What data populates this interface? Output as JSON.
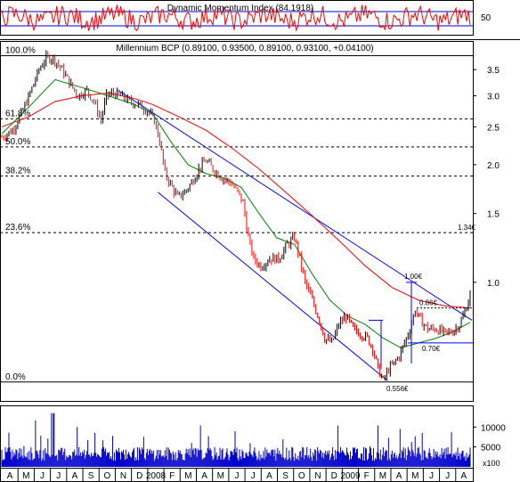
{
  "chart_data": [
    {
      "type": "line",
      "title": "Dynamic Momentum Index (84.1918)",
      "ylim": [
        20,
        80
      ],
      "ticks": [
        "50"
      ],
      "levels": [
        70,
        30
      ],
      "series": [
        {
          "name": "Dynamic Momentum Index",
          "color": "#ff0000"
        }
      ]
    },
    {
      "type": "candlestick",
      "title": "Millennium BCP (0.89100, 0.93500, 0.89100, 0.93100, +0.04100)",
      "scale": "log",
      "ylim": [
        0.5,
        4.1
      ],
      "y_ticks": [
        "3.5",
        "3.0",
        "2.5",
        "2.0",
        "1.5",
        "1.0"
      ],
      "y_tick_values": [
        3.5,
        3.0,
        2.5,
        2.0,
        1.5,
        1.0
      ],
      "fib_levels": [
        {
          "label": "100.0%",
          "value": 3.8
        },
        {
          "label": "61.8%",
          "value": 2.62
        },
        {
          "label": "50.0%",
          "value": 2.22
        },
        {
          "label": "38.2%",
          "value": 1.87
        },
        {
          "label": "23.6%",
          "value": 1.34
        },
        {
          "label": "0.0%",
          "value": 0.556
        }
      ],
      "annotations": [
        {
          "label": "1.34€",
          "value": 1.34
        },
        {
          "label": "1.00€",
          "value": 1.0
        },
        {
          "label": "0.86€",
          "value": 0.86
        },
        {
          "label": "0.70€",
          "value": 0.7
        },
        {
          "label": "0.556€",
          "value": 0.556
        }
      ],
      "price_path": [
        [
          0,
          2.35
        ],
        [
          12,
          2.45
        ],
        [
          22,
          2.7
        ],
        [
          32,
          3.05
        ],
        [
          42,
          3.5
        ],
        [
          50,
          3.75
        ],
        [
          58,
          3.75
        ],
        [
          68,
          3.5
        ],
        [
          76,
          3.25
        ],
        [
          86,
          3.0
        ],
        [
          96,
          3.1
        ],
        [
          104,
          2.9
        ],
        [
          112,
          2.6
        ],
        [
          118,
          3.0
        ],
        [
          126,
          3.05
        ],
        [
          134,
          3.0
        ],
        [
          144,
          2.9
        ],
        [
          154,
          2.85
        ],
        [
          164,
          2.75
        ],
        [
          172,
          2.6
        ],
        [
          178,
          2.3
        ],
        [
          184,
          1.9
        ],
        [
          192,
          1.75
        ],
        [
          198,
          1.65
        ],
        [
          206,
          1.7
        ],
        [
          214,
          1.8
        ],
        [
          222,
          1.95
        ],
        [
          230,
          2.05
        ],
        [
          238,
          1.95
        ],
        [
          248,
          1.85
        ],
        [
          258,
          1.8
        ],
        [
          266,
          1.7
        ],
        [
          272,
          1.6
        ],
        [
          278,
          1.3
        ],
        [
          284,
          1.15
        ],
        [
          292,
          1.1
        ],
        [
          302,
          1.15
        ],
        [
          312,
          1.15
        ],
        [
          322,
          1.25
        ],
        [
          330,
          1.3
        ],
        [
          336,
          1.15
        ],
        [
          342,
          1.0
        ],
        [
          350,
          0.9
        ],
        [
          358,
          0.8
        ],
        [
          364,
          0.72
        ],
        [
          372,
          0.7
        ],
        [
          380,
          0.78
        ],
        [
          388,
          0.82
        ],
        [
          396,
          0.76
        ],
        [
          404,
          0.74
        ],
        [
          412,
          0.72
        ],
        [
          418,
          0.68
        ],
        [
          424,
          0.6
        ],
        [
          430,
          0.56
        ],
        [
          436,
          0.6
        ],
        [
          442,
          0.62
        ],
        [
          448,
          0.65
        ],
        [
          454,
          0.7
        ],
        [
          460,
          0.76
        ],
        [
          466,
          0.85
        ],
        [
          472,
          0.8
        ],
        [
          480,
          0.76
        ],
        [
          490,
          0.76
        ],
        [
          500,
          0.74
        ],
        [
          508,
          0.75
        ],
        [
          516,
          0.78
        ],
        [
          522,
          0.84
        ],
        [
          528,
          0.931
        ]
      ],
      "ma_short": [
        [
          0,
          2.4
        ],
        [
          30,
          2.8
        ],
        [
          60,
          3.3
        ],
        [
          90,
          3.15
        ],
        [
          120,
          3.0
        ],
        [
          150,
          2.85
        ],
        [
          170,
          2.7
        ],
        [
          190,
          2.3
        ],
        [
          210,
          2.0
        ],
        [
          230,
          1.9
        ],
        [
          250,
          1.85
        ],
        [
          270,
          1.75
        ],
        [
          290,
          1.5
        ],
        [
          310,
          1.3
        ],
        [
          330,
          1.25
        ],
        [
          350,
          1.05
        ],
        [
          370,
          0.9
        ],
        [
          390,
          0.82
        ],
        [
          410,
          0.78
        ],
        [
          430,
          0.72
        ],
        [
          450,
          0.68
        ],
        [
          470,
          0.7
        ],
        [
          490,
          0.72
        ],
        [
          510,
          0.75
        ],
        [
          528,
          0.79
        ]
      ],
      "ma_long": [
        [
          0,
          2.5
        ],
        [
          30,
          2.65
        ],
        [
          60,
          2.9
        ],
        [
          90,
          3.0
        ],
        [
          120,
          3.05
        ],
        [
          150,
          2.95
        ],
        [
          170,
          2.85
        ],
        [
          200,
          2.65
        ],
        [
          230,
          2.45
        ],
        [
          260,
          2.2
        ],
        [
          290,
          1.95
        ],
        [
          320,
          1.7
        ],
        [
          350,
          1.48
        ],
        [
          380,
          1.28
        ],
        [
          410,
          1.1
        ],
        [
          440,
          0.97
        ],
        [
          470,
          0.9
        ],
        [
          500,
          0.87
        ],
        [
          528,
          0.86
        ]
      ],
      "channel_upper": [
        [
          131,
          3.1
        ],
        [
          530,
          0.8
        ]
      ],
      "channel_lower": [
        [
          176,
          1.7
        ],
        [
          435,
          0.56
        ]
      ],
      "x_ticks": [
        "A",
        "M",
        "J",
        "J",
        "A",
        "S",
        "O",
        "N",
        "D",
        "2008",
        "F",
        "M",
        "A",
        "M",
        "J",
        "J",
        "A",
        "S",
        "O",
        "N",
        "D",
        "2009",
        "F",
        "M",
        "A",
        "M",
        "J",
        "J",
        "A"
      ]
    },
    {
      "type": "bar",
      "y_ticks": [
        "10000",
        "5000"
      ],
      "y_tick_values": [
        10000,
        5000
      ],
      "ylim": [
        0,
        15000
      ],
      "unit_label": "x100",
      "series": [
        {
          "name": "Volume",
          "color": "#0000cc"
        }
      ]
    }
  ]
}
